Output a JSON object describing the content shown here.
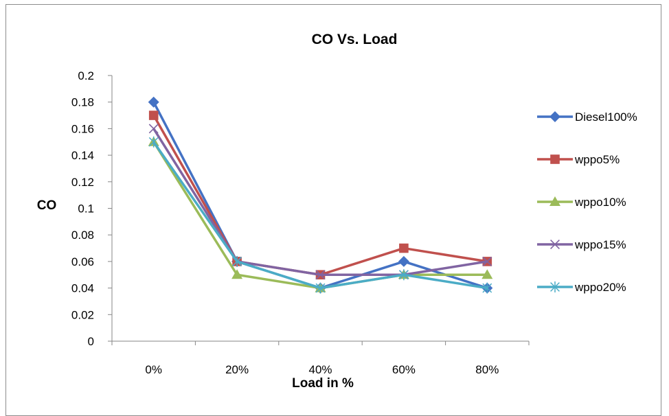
{
  "chart_data": {
    "type": "line",
    "title": "CO Vs. Load",
    "xlabel": "Load in %",
    "ylabel": "CO",
    "categories": [
      "0%",
      "20%",
      "40%",
      "60%",
      "80%"
    ],
    "ylim": [
      0,
      0.2
    ],
    "yticks": [
      0,
      0.02,
      0.04,
      0.06,
      0.08,
      0.1,
      0.12,
      0.14,
      0.16,
      0.18,
      0.2
    ],
    "ytick_labels": [
      "0",
      "0.02",
      "0.04",
      "0.06",
      "0.08",
      "0.1",
      "0.12",
      "0.14",
      "0.16",
      "0.18",
      "0.2"
    ],
    "grid": false,
    "legend_position": "right",
    "series": [
      {
        "name": "Diesel100%",
        "values": [
          0.18,
          0.06,
          0.04,
          0.06,
          0.04
        ],
        "color": "#4472C4",
        "marker": "diamond"
      },
      {
        "name": "wppo5%",
        "values": [
          0.17,
          0.06,
          0.05,
          0.07,
          0.06
        ],
        "color": "#C0504D",
        "marker": "square"
      },
      {
        "name": "wppo10%",
        "values": [
          0.15,
          0.05,
          0.04,
          0.05,
          0.05
        ],
        "color": "#9BBB59",
        "marker": "triangle"
      },
      {
        "name": "wppo15%",
        "values": [
          0.16,
          0.06,
          0.05,
          0.05,
          0.06
        ],
        "color": "#8064A2",
        "marker": "x"
      },
      {
        "name": "wppo20%",
        "values": [
          0.15,
          0.06,
          0.04,
          0.05,
          0.04
        ],
        "color": "#4BACC6",
        "marker": "star"
      }
    ]
  }
}
